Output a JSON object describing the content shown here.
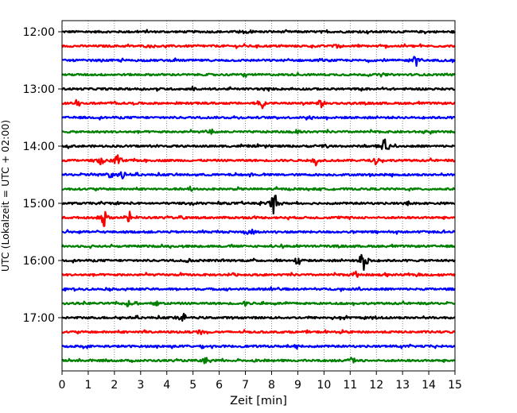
{
  "chart_data": {
    "type": "line",
    "title": "",
    "xlabel": "Zeit  [min]",
    "ylabel": "UTC (Lokalzeit = UTC + 02:00)",
    "xlim": [
      0,
      15
    ],
    "x_ticks": [
      0,
      1,
      2,
      3,
      4,
      5,
      6,
      7,
      8,
      9,
      10,
      11,
      12,
      13,
      14,
      15
    ],
    "x_tick_labels": [
      "0",
      "1",
      "2",
      "3",
      "4",
      "5",
      "6",
      "7",
      "8",
      "9",
      "10",
      "11",
      "12",
      "13",
      "14",
      "15"
    ],
    "y_tick_labels": [
      "12:00",
      "13:00",
      "14:00",
      "15:00",
      "16:00",
      "17:00"
    ],
    "y_tick_rows": [
      0,
      4,
      8,
      12,
      16,
      20
    ],
    "grid": "vertical dotted",
    "legend": "none",
    "trace_colors": [
      "#000000",
      "#ff0000",
      "#0000ff",
      "#008000"
    ],
    "series": [
      {
        "start": "12:00",
        "events": [
          {
            "x": 7.0,
            "amp": 0.2
          }
        ]
      },
      {
        "start": "12:15",
        "events": [
          {
            "x": 10.5,
            "amp": 0.15
          }
        ]
      },
      {
        "start": "12:30",
        "events": [
          {
            "x": 13.5,
            "amp": 0.55
          }
        ]
      },
      {
        "start": "12:45",
        "events": [
          {
            "x": 7.0,
            "amp": 0.15
          }
        ]
      },
      {
        "start": "13:00",
        "events": [
          {
            "x": 5.0,
            "amp": 0.12
          }
        ]
      },
      {
        "start": "13:15",
        "events": [
          {
            "x": 7.6,
            "amp": 0.45
          },
          {
            "x": 9.9,
            "amp": 0.3
          },
          {
            "x": 0.6,
            "amp": 0.2
          }
        ]
      },
      {
        "start": "13:30",
        "events": [
          {
            "x": 9.5,
            "amp": 0.15
          }
        ]
      },
      {
        "start": "13:45",
        "events": [
          {
            "x": 5.7,
            "amp": 0.25
          },
          {
            "x": 9.0,
            "amp": 0.15
          }
        ]
      },
      {
        "start": "14:00",
        "events": [
          {
            "x": 12.3,
            "amp": 0.7
          },
          {
            "x": 10.0,
            "amp": 0.2
          }
        ]
      },
      {
        "start": "14:15",
        "events": [
          {
            "x": 1.5,
            "amp": 0.35
          },
          {
            "x": 2.1,
            "amp": 0.5
          },
          {
            "x": 9.7,
            "amp": 0.3
          },
          {
            "x": 12.0,
            "amp": 0.2
          }
        ]
      },
      {
        "start": "14:30",
        "events": [
          {
            "x": 1.8,
            "amp": 0.35
          },
          {
            "x": 2.3,
            "amp": 0.4
          },
          {
            "x": 1.2,
            "amp": 0.15
          }
        ]
      },
      {
        "start": "14:45",
        "events": [
          {
            "x": 4.9,
            "amp": 0.15
          }
        ]
      },
      {
        "start": "15:00",
        "events": [
          {
            "x": 8.1,
            "amp": 0.9
          },
          {
            "x": 4.9,
            "amp": 0.2
          },
          {
            "x": 13.2,
            "amp": 0.15
          }
        ]
      },
      {
        "start": "15:15",
        "events": [
          {
            "x": 1.6,
            "amp": 0.7
          },
          {
            "x": 2.6,
            "amp": 0.4
          },
          {
            "x": 4.6,
            "amp": 0.15
          }
        ]
      },
      {
        "start": "15:30",
        "events": [
          {
            "x": 7.2,
            "amp": 0.35
          },
          {
            "x": 14.0,
            "amp": 0.12
          }
        ]
      },
      {
        "start": "15:45",
        "events": [
          {
            "x": 8.0,
            "amp": 0.12
          }
        ]
      },
      {
        "start": "16:00",
        "events": [
          {
            "x": 9.0,
            "amp": 0.45
          },
          {
            "x": 11.5,
            "amp": 0.85
          },
          {
            "x": 4.8,
            "amp": 0.15
          }
        ]
      },
      {
        "start": "16:15",
        "events": [
          {
            "x": 11.2,
            "amp": 0.3
          },
          {
            "x": 6.5,
            "amp": 0.15
          }
        ]
      },
      {
        "start": "16:30",
        "events": [
          {
            "x": 8.0,
            "amp": 0.12
          }
        ]
      },
      {
        "start": "16:45",
        "events": [
          {
            "x": 2.5,
            "amp": 0.2
          },
          {
            "x": 3.6,
            "amp": 0.2
          },
          {
            "x": 7.0,
            "amp": 0.15
          }
        ]
      },
      {
        "start": "17:00",
        "events": [
          {
            "x": 4.6,
            "amp": 0.35
          },
          {
            "x": 12.0,
            "amp": 0.15
          }
        ]
      },
      {
        "start": "17:15",
        "events": [
          {
            "x": 5.3,
            "amp": 0.25
          },
          {
            "x": 3.2,
            "amp": 0.15
          }
        ]
      },
      {
        "start": "17:30",
        "events": [
          {
            "x": 8.9,
            "amp": 0.2
          }
        ]
      },
      {
        "start": "17:45",
        "events": [
          {
            "x": 5.5,
            "amp": 0.3
          },
          {
            "x": 11.1,
            "amp": 0.25
          }
        ]
      }
    ]
  }
}
